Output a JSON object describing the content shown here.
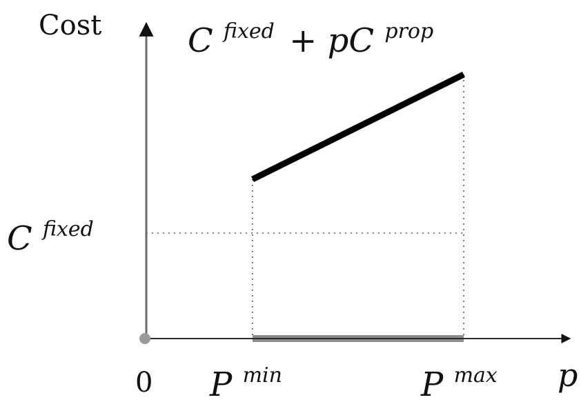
{
  "diagram": {
    "y_axis_label": "Cost",
    "x_axis_label": "p",
    "origin_label": "0",
    "cost_line_label": {
      "base": "C",
      "sup1": "fixed",
      "plus": "+ pC",
      "sup2": "prop"
    },
    "fixed_cost_label": {
      "base": "C",
      "sup": "fixed"
    },
    "pmin_label": {
      "base": "P",
      "sup": "min"
    },
    "pmax_label": {
      "base": "P",
      "sup": "max"
    }
  },
  "colors": {
    "axis": "#6b6b6b",
    "cost_line": "#000000",
    "feasible_range": "#8c8c8c",
    "guide": "#555555",
    "origin_dot": "#9a9a9a"
  }
}
